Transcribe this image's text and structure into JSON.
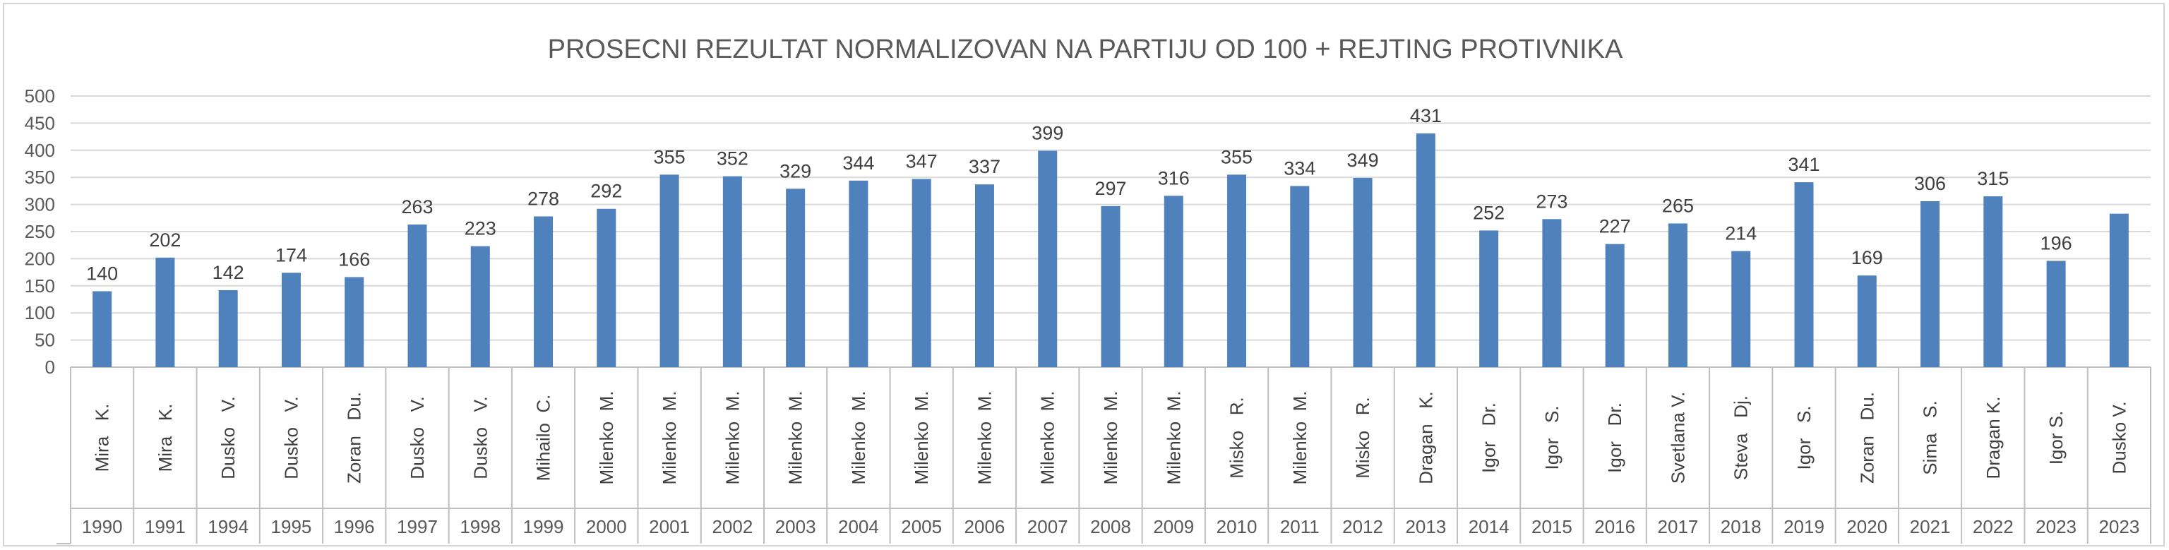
{
  "chart_data": {
    "type": "bar",
    "title": "PROSECNI REZULTAT NORMALIZOVAN NA PARTIJU OD 100 + REJTING PROTIVNIKA",
    "xlabel": "",
    "ylabel": "",
    "ylim": [
      0,
      500
    ],
    "yticks": [
      0,
      50,
      100,
      150,
      200,
      250,
      300,
      350,
      400,
      450,
      500
    ],
    "grid": true,
    "legend": "none",
    "bar_color": "#4f81bd",
    "categories": [
      {
        "name": "Mira   K.",
        "year": "1990"
      },
      {
        "name": "Mira   K.",
        "year": "1991"
      },
      {
        "name": "Dusko   V.",
        "year": "1994"
      },
      {
        "name": "Dusko   V.",
        "year": "1995"
      },
      {
        "name": "Zoran   Du.",
        "year": "1996"
      },
      {
        "name": "Dusko   V.",
        "year": "1997"
      },
      {
        "name": "Dusko   V.",
        "year": "1998"
      },
      {
        "name": "Mihailo  C.",
        "year": "1999"
      },
      {
        "name": "Milenko  M.",
        "year": "2000"
      },
      {
        "name": "Milenko  M.",
        "year": "2001"
      },
      {
        "name": "Milenko  M.",
        "year": "2002"
      },
      {
        "name": "Milenko  M.",
        "year": "2003"
      },
      {
        "name": "Milenko  M.",
        "year": "2004"
      },
      {
        "name": "Milenko  M.",
        "year": "2005"
      },
      {
        "name": "Milenko  M.",
        "year": "2006"
      },
      {
        "name": "Milenko  M.",
        "year": "2007"
      },
      {
        "name": "Milenko  M.",
        "year": "2008"
      },
      {
        "name": "Milenko  M.",
        "year": "2009"
      },
      {
        "name": "Misko   R.",
        "year": "2010"
      },
      {
        "name": "Milenko  M.",
        "year": "2011"
      },
      {
        "name": "Misko   R.",
        "year": "2012"
      },
      {
        "name": "Dragan   K.",
        "year": "2013"
      },
      {
        "name": "Igor   Dr.",
        "year": "2014"
      },
      {
        "name": "Igor   S.",
        "year": "2015"
      },
      {
        "name": "Igor   Dr.",
        "year": "2016"
      },
      {
        "name": "Svetlana V.",
        "year": "2017"
      },
      {
        "name": "Steva   Dj.",
        "year": "2018"
      },
      {
        "name": "Igor   S.",
        "year": "2019"
      },
      {
        "name": "Zoran   Du.",
        "year": "2020"
      },
      {
        "name": "Sima   S.",
        "year": "2021"
      },
      {
        "name": "Dragan K.",
        "year": "2022"
      },
      {
        "name": "Igor S.",
        "year": "2023"
      },
      {
        "name": "Dusko V.",
        "year": "2023"
      }
    ],
    "values": [
      140,
      202,
      142,
      174,
      166,
      263,
      223,
      278,
      292,
      355,
      352,
      329,
      344,
      347,
      337,
      399,
      297,
      316,
      355,
      334,
      349,
      431,
      252,
      273,
      227,
      265,
      214,
      341,
      169,
      306,
      315,
      196,
      283
    ],
    "data_labels": [
      140,
      202,
      142,
      174,
      166,
      263,
      223,
      278,
      292,
      355,
      352,
      329,
      344,
      347,
      337,
      399,
      297,
      316,
      355,
      334,
      349,
      431,
      252,
      273,
      227,
      265,
      214,
      341,
      169,
      306,
      315,
      196,
      null
    ]
  }
}
